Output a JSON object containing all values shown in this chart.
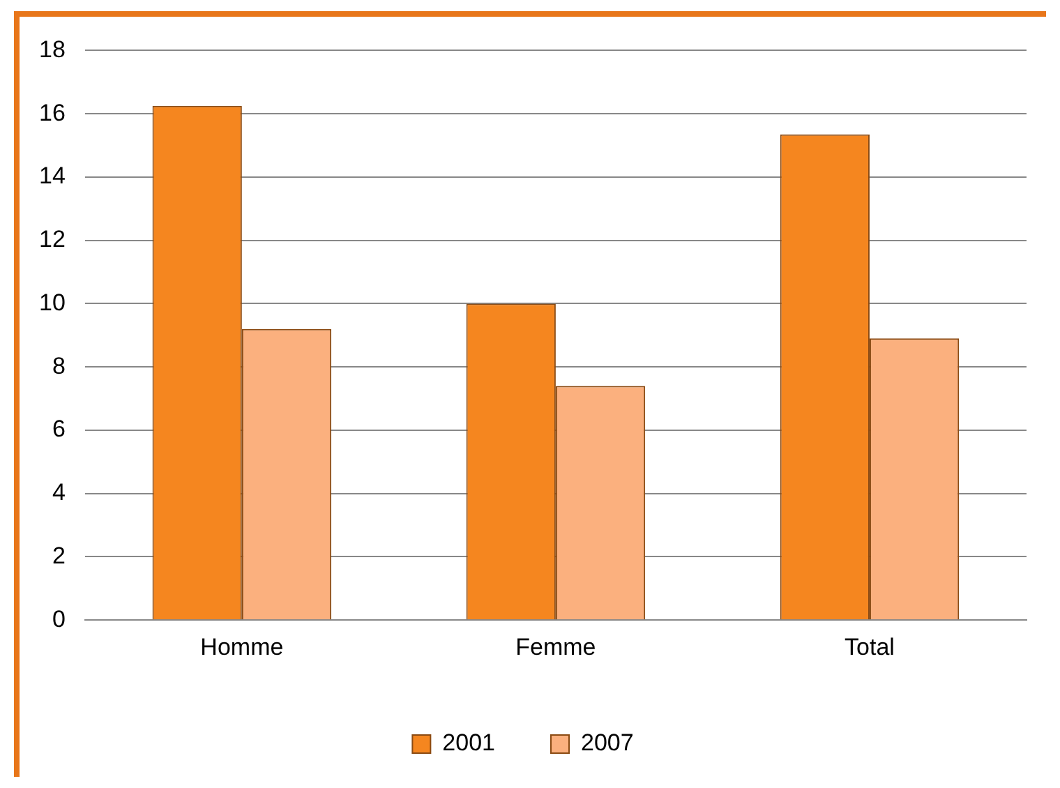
{
  "chart_data": {
    "type": "bar",
    "categories": [
      "Homme",
      "Femme",
      "Total"
    ],
    "series": [
      {
        "name": "2001",
        "color": "#f5861f",
        "values": [
          16.25,
          10.0,
          15.35
        ]
      },
      {
        "name": "2007",
        "color": "#fbb07e",
        "values": [
          9.2,
          7.4,
          8.9
        ]
      }
    ],
    "ylim": [
      0,
      18
    ],
    "yticks": [
      0,
      2,
      4,
      6,
      8,
      10,
      12,
      14,
      16,
      18
    ],
    "grid": "y",
    "legend": "bottom"
  }
}
